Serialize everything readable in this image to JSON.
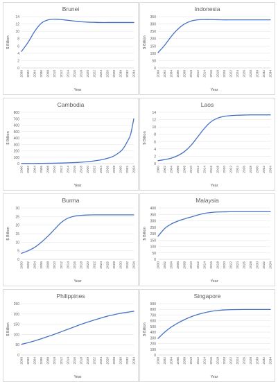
{
  "chart_data": [
    {
      "type": "line",
      "title": "Brunei",
      "xlabel": "Year",
      "ylabel": "$ Billion",
      "ylim": [
        0,
        14
      ],
      "yticks": [
        0,
        2,
        4,
        6,
        8,
        10,
        12,
        14
      ],
      "xticks": [
        "2000",
        "2002",
        "2004",
        "2006",
        "2008",
        "2010",
        "2012",
        "2014",
        "2016",
        "2018",
        "2020",
        "2022",
        "2024",
        "2026",
        "2028",
        "2030",
        "2032",
        "2034"
      ],
      "grid": true,
      "series": [
        {
          "color": "#4472c4",
          "x": [
            2000,
            2002,
            2004,
            2006,
            2008,
            2010,
            2012,
            2014,
            2016,
            2018,
            2020,
            2022,
            2024,
            2026,
            2028,
            2030,
            2032,
            2034
          ],
          "y": [
            4.5,
            7.0,
            10.0,
            12.2,
            13.1,
            13.3,
            13.2,
            13.0,
            12.8,
            12.6,
            12.5,
            12.45,
            12.4,
            12.4,
            12.4,
            12.4,
            12.4,
            12.4
          ]
        }
      ]
    },
    {
      "type": "line",
      "title": "Indonesia",
      "xlabel": "Year",
      "ylabel": "$ Billion",
      "ylim": [
        0,
        350
      ],
      "yticks": [
        0,
        50,
        100,
        150,
        200,
        250,
        300,
        350
      ],
      "xticks": [
        "2000",
        "2002",
        "2004",
        "2006",
        "2008",
        "2010",
        "2012",
        "2014",
        "2016",
        "2018",
        "2020",
        "2022",
        "2024",
        "2026",
        "2028",
        "2030",
        "2032",
        "2034"
      ],
      "grid": true,
      "series": [
        {
          "color": "#4472c4",
          "x": [
            2000,
            2002,
            2004,
            2006,
            2008,
            2010,
            2012,
            2014,
            2016,
            2018,
            2020,
            2022,
            2024,
            2026,
            2028,
            2030,
            2032,
            2034
          ],
          "y": [
            105,
            155,
            215,
            265,
            300,
            320,
            328,
            330,
            330,
            329,
            328,
            328,
            328,
            328,
            328,
            328,
            328,
            328
          ]
        }
      ]
    },
    {
      "type": "line",
      "title": "Cambodia",
      "xlabel": "Year",
      "ylabel": "$ Billion",
      "ylim": [
        0,
        800
      ],
      "yticks": [
        0,
        100,
        200,
        300,
        400,
        500,
        600,
        700,
        800
      ],
      "xticks": [
        "2000",
        "2002",
        "2004",
        "2006",
        "2008",
        "2010",
        "2012",
        "2014",
        "2016",
        "2018",
        "2020",
        "2022",
        "2024",
        "2026",
        "2028",
        "2030",
        "2032",
        "2034"
      ],
      "grid": true,
      "series": [
        {
          "color": "#4472c4",
          "x": [
            2000,
            2002,
            2004,
            2006,
            2008,
            2010,
            2012,
            2014,
            2016,
            2018,
            2020,
            2022,
            2024,
            2026,
            2028,
            2030,
            2031,
            2032,
            2033,
            2034
          ],
          "y": [
            2,
            2,
            3,
            4,
            5,
            7,
            9,
            12,
            16,
            22,
            30,
            42,
            58,
            82,
            120,
            190,
            250,
            340,
            450,
            700
          ]
        }
      ]
    },
    {
      "type": "line",
      "title": "Laos",
      "xlabel": "Year",
      "ylabel": "$ Billion",
      "ylim": [
        0,
        14
      ],
      "yticks": [
        0,
        2,
        4,
        6,
        8,
        10,
        12,
        14
      ],
      "xticks": [
        "2000",
        "2002",
        "2004",
        "2006",
        "2008",
        "2010",
        "2012",
        "2014",
        "2016",
        "2018",
        "2020",
        "2022",
        "2024",
        "2026",
        "2028",
        "2030",
        "2032",
        "2034"
      ],
      "grid": true,
      "series": [
        {
          "color": "#4472c4",
          "x": [
            2000,
            2002,
            2004,
            2006,
            2008,
            2010,
            2012,
            2014,
            2016,
            2018,
            2020,
            2022,
            2024,
            2026,
            2028,
            2030,
            2032,
            2034
          ],
          "y": [
            0.8,
            1.1,
            1.5,
            2.2,
            3.3,
            5.0,
            7.3,
            9.6,
            11.4,
            12.4,
            12.9,
            13.1,
            13.2,
            13.25,
            13.3,
            13.3,
            13.3,
            13.3
          ]
        }
      ]
    },
    {
      "type": "line",
      "title": "Burma",
      "xlabel": "Year",
      "ylabel": "$ Billion",
      "ylim": [
        0,
        30
      ],
      "yticks": [
        0,
        5,
        10,
        15,
        20,
        25,
        30
      ],
      "xticks": [
        "2000",
        "2002",
        "2004",
        "2006",
        "2008",
        "2010",
        "2012",
        "2014",
        "2016",
        "2018",
        "2020",
        "2022",
        "2024",
        "2026",
        "2028",
        "2030",
        "2032",
        "2034"
      ],
      "grid": true,
      "series": [
        {
          "color": "#4472c4",
          "x": [
            2000,
            2002,
            2004,
            2006,
            2008,
            2010,
            2012,
            2014,
            2016,
            2018,
            2020,
            2022,
            2024,
            2026,
            2028,
            2030,
            2032,
            2034
          ],
          "y": [
            3.5,
            5.0,
            7.0,
            10.0,
            13.5,
            17.5,
            21.5,
            24.0,
            25.2,
            25.7,
            25.9,
            26.0,
            26.0,
            26.0,
            26.0,
            26.0,
            26.0,
            26.0
          ]
        }
      ]
    },
    {
      "type": "line",
      "title": "Malaysia",
      "xlabel": "Year",
      "ylabel": "$ Billion",
      "ylim": [
        0,
        400
      ],
      "yticks": [
        0,
        50,
        100,
        150,
        200,
        250,
        300,
        350,
        400
      ],
      "xticks": [
        "2000",
        "2002",
        "2004",
        "2006",
        "2008",
        "2010",
        "2012",
        "2014",
        "2016",
        "2018",
        "2020",
        "2022",
        "2024",
        "2026",
        "2028",
        "2030",
        "2032",
        "2034"
      ],
      "grid": true,
      "series": [
        {
          "color": "#4472c4",
          "x": [
            2000,
            2002,
            2004,
            2006,
            2008,
            2010,
            2012,
            2014,
            2016,
            2018,
            2020,
            2022,
            2024,
            2026,
            2028,
            2030,
            2032,
            2034
          ],
          "y": [
            180,
            240,
            275,
            298,
            315,
            330,
            345,
            358,
            365,
            369,
            370,
            371,
            371,
            371,
            371,
            371,
            371,
            371
          ]
        }
      ]
    },
    {
      "type": "line",
      "title": "Philippines",
      "xlabel": "Year",
      "ylabel": "$ Billion",
      "ylim": [
        0,
        250
      ],
      "yticks": [
        0,
        50,
        100,
        150,
        200,
        250
      ],
      "xticks": [
        "2000",
        "2002",
        "2004",
        "2006",
        "2008",
        "2010",
        "2012",
        "2014",
        "2016",
        "2018",
        "2020",
        "2022",
        "2024",
        "2026",
        "2028",
        "2030",
        "2032",
        "2034"
      ],
      "grid": true,
      "series": [
        {
          "color": "#4472c4",
          "x": [
            2000,
            2002,
            2004,
            2006,
            2008,
            2010,
            2012,
            2014,
            2016,
            2018,
            2020,
            2022,
            2024,
            2026,
            2028,
            2030,
            2032,
            2034
          ],
          "y": [
            52,
            60,
            69,
            79,
            90,
            101,
            113,
            125,
            137,
            149,
            160,
            170,
            180,
            189,
            196,
            203,
            208,
            213
          ]
        }
      ]
    },
    {
      "type": "line",
      "title": "Singapore",
      "xlabel": "Year",
      "ylabel": "$ Billion",
      "ylim": [
        0,
        900
      ],
      "yticks": [
        0,
        100,
        200,
        300,
        400,
        500,
        600,
        700,
        800,
        900
      ],
      "xticks": [
        "2000",
        "2002",
        "2004",
        "2006",
        "2008",
        "2010",
        "2012",
        "2014",
        "2016",
        "2018",
        "2020",
        "2022",
        "2024",
        "2026",
        "2028",
        "2030",
        "2032",
        "2034"
      ],
      "grid": true,
      "series": [
        {
          "color": "#4472c4",
          "x": [
            2000,
            2002,
            2004,
            2006,
            2008,
            2010,
            2012,
            2014,
            2016,
            2018,
            2020,
            2022,
            2024,
            2026,
            2028,
            2030,
            2032,
            2034
          ],
          "y": [
            290,
            400,
            490,
            560,
            620,
            670,
            710,
            740,
            765,
            780,
            790,
            795,
            797,
            798,
            798,
            798,
            798,
            798
          ]
        }
      ]
    }
  ]
}
